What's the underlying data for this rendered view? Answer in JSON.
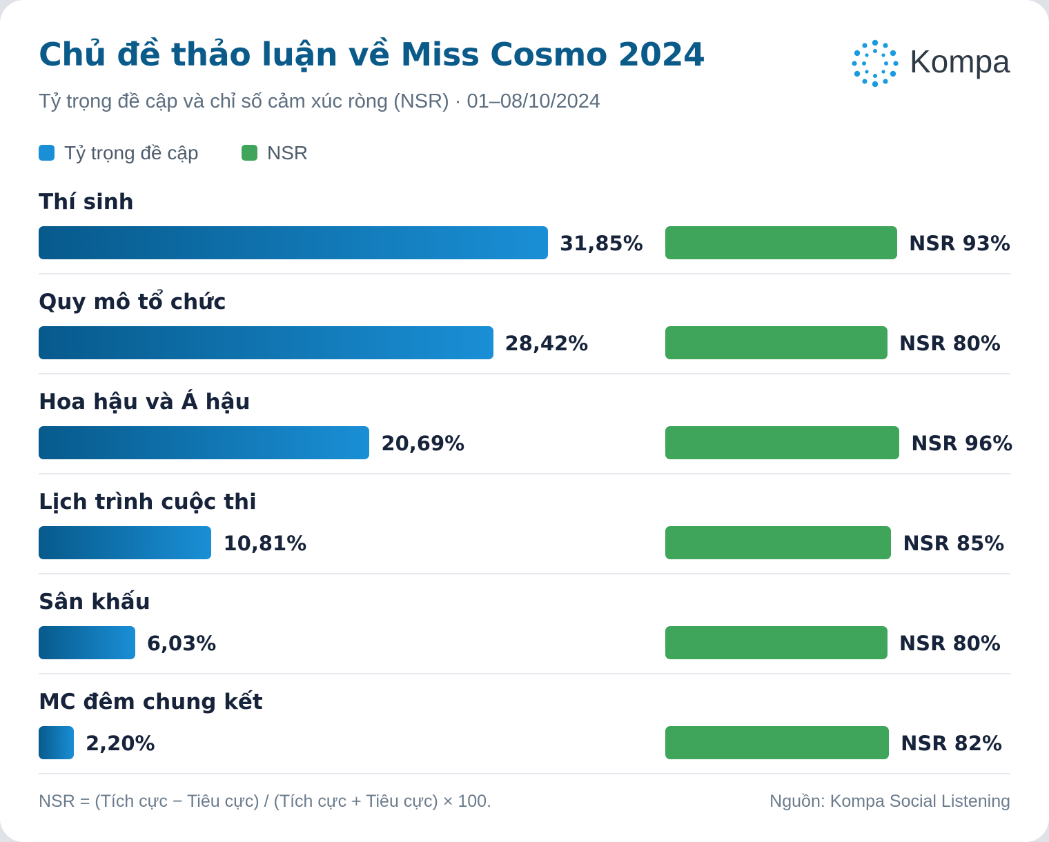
{
  "title": "Chủ đề thảo luận về Miss Cosmo 2024",
  "subtitle": "Tỷ trọng đề cập và chỉ số cảm xúc ròng (NSR) · 01–08/10/2024",
  "brand": {
    "name": "Kompa",
    "icon": "kompa-dots-logo-icon",
    "color": "#1a9be0"
  },
  "legend": [
    {
      "label": "Tỷ trọng đề cập",
      "color": "#1a8fd6"
    },
    {
      "label": "NSR",
      "color": "#3fa55b"
    }
  ],
  "chart_data": {
    "type": "bar",
    "orientation": "horizontal",
    "categories": [
      "Thí sinh",
      "Quy mô tổ chức",
      "Hoa hậu và Á hậu",
      "Lịch trình cuộc thi",
      "Sân khấu",
      "MC đêm chung kết"
    ],
    "series": [
      {
        "name": "Tỷ trọng đề cập",
        "values": [
          31.85,
          28.42,
          20.69,
          10.81,
          6.03,
          2.2
        ],
        "labels": [
          "31,85%",
          "28,42%",
          "20,69%",
          "10,81%",
          "6,03%",
          "2,20%"
        ],
        "color": "#1a8fd6"
      },
      {
        "name": "NSR",
        "values": [
          93,
          80,
          96,
          85,
          80,
          82
        ],
        "labels": [
          "NSR 93%",
          "NSR 80%",
          "NSR 96%",
          "NSR 85%",
          "NSR 80%",
          "NSR 82%"
        ],
        "color": "#3fa55b"
      }
    ],
    "grid": false,
    "legend_position": "top-left"
  },
  "footer": {
    "note": "NSR = (Tích cực − Tiêu cực) / (Tích cực + Tiêu cực) × 100.",
    "source": "Nguồn: Kompa Social Listening"
  }
}
